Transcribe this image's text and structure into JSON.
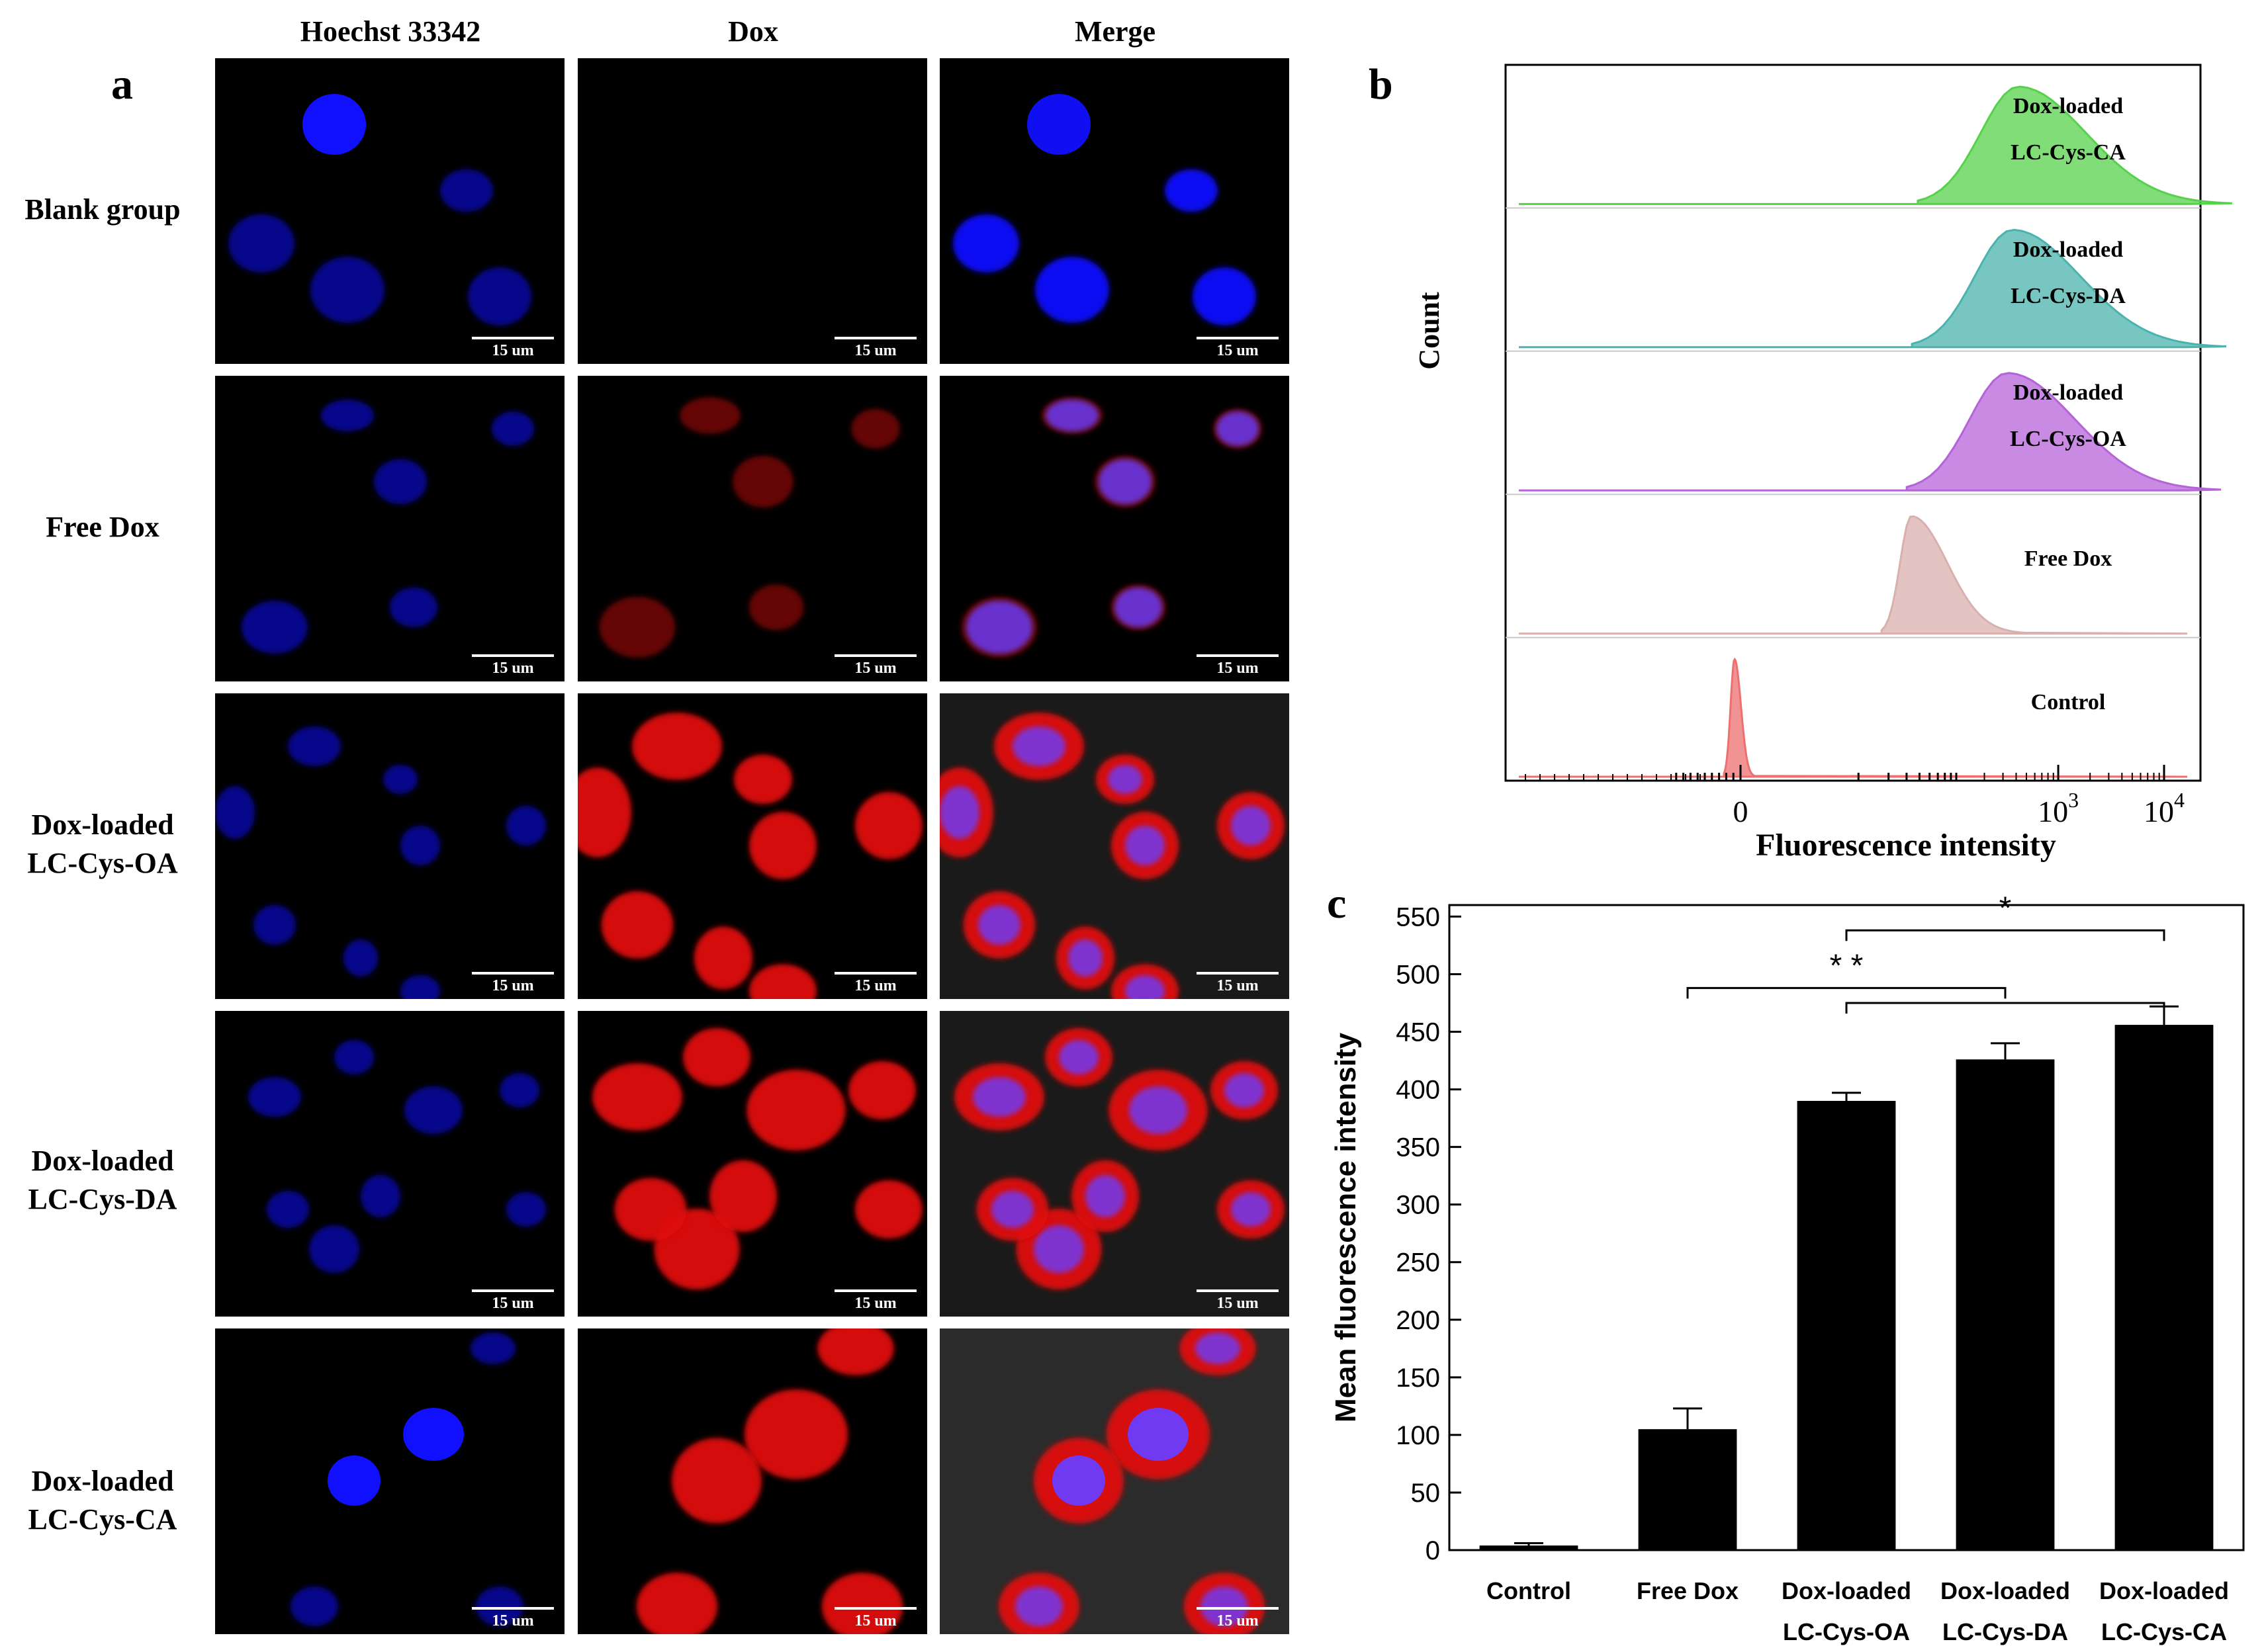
{
  "panel_letters": {
    "a": "a",
    "b": "b",
    "c": "c"
  },
  "panel_a": {
    "columns": [
      "Hoechst 33342",
      "Dox",
      "Merge"
    ],
    "rows": [
      {
        "label_lines": [
          "Blank group"
        ]
      },
      {
        "label_lines": [
          "Free Dox"
        ]
      },
      {
        "label_lines": [
          "Dox-loaded",
          "LC-Cys-OA"
        ]
      },
      {
        "label_lines": [
          "Dox-loaded",
          "LC-Cys-DA"
        ]
      },
      {
        "label_lines": [
          "Dox-loaded",
          "LC-Cys-CA"
        ]
      }
    ],
    "scale_bar_label": "15 um",
    "colors": {
      "nucleus": "#1010ff",
      "dox": "#e01010",
      "merge_nucleus": "#6a3cff"
    }
  },
  "chart_data": [
    {
      "type": "area",
      "panel": "b",
      "xlabel": "Fluorescence intensity",
      "ylabel": "Count",
      "x_ticks": [
        "0",
        "10^3",
        "10^4"
      ],
      "series": [
        {
          "label_lines": [
            "Dox-loaded",
            "LC-Cys-CA"
          ],
          "color": "#56d14a",
          "peak": 420,
          "spread": "wide"
        },
        {
          "label_lines": [
            "Dox-loaded",
            "LC-Cys-DA"
          ],
          "color": "#4bb3ad",
          "peak": 370,
          "spread": "wide"
        },
        {
          "label_lines": [
            "Dox-loaded",
            "LC-Cys-OA"
          ],
          "color": "#b563d8",
          "peak": 330,
          "spread": "wide"
        },
        {
          "label_lines": [
            "Free Dox"
          ],
          "color": "#d9b0ae",
          "peak": 40,
          "spread": "medium"
        },
        {
          "label_lines": [
            "Control"
          ],
          "color": "#ee6f6f",
          "peak": -10,
          "spread": "narrow"
        }
      ]
    },
    {
      "type": "bar",
      "panel": "c",
      "ylabel": "Mean fluorescence intensity",
      "ylim": [
        0,
        560
      ],
      "yticks": [
        0,
        50,
        100,
        150,
        200,
        250,
        300,
        350,
        400,
        450,
        500,
        550
      ],
      "categories": [
        {
          "lines": [
            "Control"
          ]
        },
        {
          "lines": [
            "Free Dox"
          ]
        },
        {
          "lines": [
            "Dox-loaded",
            "LC-Cys-OA"
          ]
        },
        {
          "lines": [
            "Dox-loaded",
            "LC-Cys-DA"
          ]
        },
        {
          "lines": [
            "Dox-loaded",
            "LC-Cys-CA"
          ]
        }
      ],
      "values": [
        4,
        105,
        390,
        426,
        456
      ],
      "errors": [
        2,
        18,
        7,
        14,
        16
      ],
      "bar_color": "#000000",
      "significance": [
        {
          "label": "*",
          "from": 2,
          "to": 4
        },
        {
          "label": "* *",
          "from": 1,
          "to": 3
        },
        {
          "label": "",
          "from": 2,
          "to": 4
        }
      ]
    }
  ]
}
